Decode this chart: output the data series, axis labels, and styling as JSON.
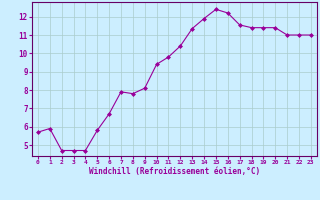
{
  "x": [
    0,
    1,
    2,
    3,
    4,
    5,
    6,
    7,
    8,
    9,
    10,
    11,
    12,
    13,
    14,
    15,
    16,
    17,
    18,
    19,
    20,
    21,
    22,
    23
  ],
  "y": [
    5.7,
    5.9,
    4.7,
    4.7,
    4.7,
    5.8,
    6.7,
    7.9,
    7.8,
    8.1,
    9.4,
    9.8,
    10.4,
    11.35,
    11.9,
    12.4,
    12.2,
    11.55,
    11.4,
    11.4,
    11.4,
    11.0,
    11.0,
    11.0
  ],
  "line_color": "#990099",
  "marker": "D",
  "marker_size": 2.0,
  "bg_color": "#cceeff",
  "grid_color": "#aacccc",
  "xlabel": "Windchill (Refroidissement éolien,°C)",
  "xlabel_color": "#990099",
  "tick_color": "#990099",
  "spine_color": "#660066",
  "ylim": [
    4.4,
    12.8
  ],
  "yticks": [
    5,
    6,
    7,
    8,
    9,
    10,
    11,
    12
  ],
  "xlim": [
    -0.5,
    23.5
  ]
}
